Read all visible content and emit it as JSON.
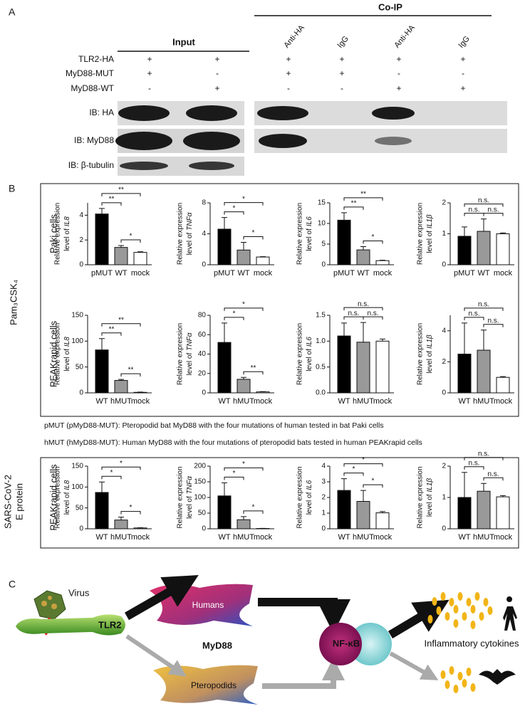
{
  "panel_a": {
    "label": "A",
    "input": "Input",
    "coip": "Co-IP",
    "columns": [
      "Anti-HA",
      "IgG",
      "Anti-HA",
      "IgG"
    ],
    "rows": [
      {
        "name": "TLR2-HA",
        "marks": [
          "+",
          "+",
          "+",
          "+",
          "+",
          "+"
        ]
      },
      {
        "name": "MyD88-MUT",
        "marks": [
          "+",
          "-",
          "+",
          "+",
          "-",
          "-"
        ]
      },
      {
        "name": "MyD88-WT",
        "marks": [
          "-",
          "+",
          "-",
          "-",
          "+",
          "+"
        ]
      }
    ],
    "blots": [
      "IB: HA",
      "IB: MyD88",
      "IB: β-tubulin"
    ]
  },
  "panel_b": {
    "label": "B",
    "rows": [
      "Paki cells",
      "PEAKrapid cells",
      "PEAKrapid cells"
    ],
    "treatments": [
      {
        "lines": [
          "Pam₃CSK₄"
        ]
      },
      {
        "lines": [
          "SARS-CoV-2",
          "E protein"
        ]
      }
    ],
    "notes": [
      "pMUT (pMyD88-MUT): Pteropodid bat MyD88 with the four mutations of human tested in bat Paki cells",
      "hMUT (hMyD88-MUT): Human MyD88 with the four mutations of pteropodid bats tested in human PEAKrapid cells"
    ]
  },
  "chart_data": [
    {
      "type": "bar",
      "ylabel": "Relative expression",
      "ylabel2": "level of",
      "gene": "IL8",
      "categories": [
        "pMUT",
        "WT",
        "mock"
      ],
      "values": [
        4.1,
        1.4,
        1.0
      ],
      "errors": [
        0.45,
        0.15,
        0.05
      ],
      "colors": [
        "#000000",
        "#999999",
        "#ffffff"
      ],
      "ylim": [
        0,
        5
      ],
      "yticks": [
        0,
        2,
        4
      ],
      "significance": [
        "**",
        "*",
        "**"
      ]
    },
    {
      "type": "bar",
      "ylabel": "Relative expression",
      "ylabel2": "level of",
      "gene": "TNFα",
      "categories": [
        "pMUT",
        "WT",
        "mock"
      ],
      "values": [
        4.6,
        1.9,
        1.0
      ],
      "errors": [
        1.5,
        1.0,
        0.05
      ],
      "colors": [
        "#000000",
        "#999999",
        "#ffffff"
      ],
      "ylim": [
        0,
        8
      ],
      "yticks": [
        0,
        4,
        8
      ],
      "significance": [
        "*",
        "*",
        "*"
      ]
    },
    {
      "type": "bar",
      "ylabel": "Relative expression",
      "ylabel2": "level of",
      "gene": "IL6",
      "categories": [
        "pMUT",
        "WT",
        "mock"
      ],
      "values": [
        10.8,
        3.6,
        1.0
      ],
      "errors": [
        1.8,
        0.8,
        0.1
      ],
      "colors": [
        "#000000",
        "#999999",
        "#ffffff"
      ],
      "ylim": [
        0,
        15
      ],
      "yticks": [
        0,
        5,
        10,
        15
      ],
      "significance": [
        "**",
        "*",
        "**"
      ]
    },
    {
      "type": "bar",
      "ylabel": "Relative expression",
      "ylabel2": "level of",
      "gene": "IL1β",
      "categories": [
        "pMUT",
        "WT",
        "mock"
      ],
      "values": [
        0.92,
        1.08,
        1.0
      ],
      "errors": [
        0.3,
        0.4,
        0.03
      ],
      "colors": [
        "#000000",
        "#999999",
        "#ffffff"
      ],
      "ylim": [
        0,
        2
      ],
      "yticks": [
        0,
        1,
        2
      ],
      "significance": [
        "n.s.",
        "n.s.",
        "n.s."
      ]
    },
    {
      "type": "bar",
      "ylabel": "Relative expression",
      "ylabel2": "level of",
      "gene": "IL8",
      "categories": [
        "WT",
        "hMUT",
        "mock"
      ],
      "values": [
        83,
        24,
        1
      ],
      "errors": [
        22,
        2,
        0.5
      ],
      "colors": [
        "#000000",
        "#999999",
        "#ffffff"
      ],
      "ylim": [
        0,
        150
      ],
      "yticks": [
        0,
        50,
        100,
        150
      ],
      "significance": [
        "**",
        "**",
        "**"
      ]
    },
    {
      "type": "bar",
      "ylabel": "Relative expression",
      "ylabel2": "level of",
      "gene": "TNFα",
      "categories": [
        "WT",
        "hMUT",
        "mock"
      ],
      "values": [
        52,
        14,
        1
      ],
      "errors": [
        20,
        2,
        0.3
      ],
      "colors": [
        "#000000",
        "#999999",
        "#ffffff"
      ],
      "ylim": [
        0,
        80
      ],
      "yticks": [
        0,
        20,
        40,
        60,
        80
      ],
      "significance": [
        "*",
        "**",
        "*"
      ]
    },
    {
      "type": "bar",
      "ylabel": "Relative expression",
      "ylabel2": "level of",
      "gene": "IL6",
      "categories": [
        "WT",
        "hMUT",
        "mock"
      ],
      "values": [
        1.1,
        0.98,
        1.0
      ],
      "errors": [
        0.25,
        0.38,
        0.04
      ],
      "colors": [
        "#000000",
        "#999999",
        "#ffffff"
      ],
      "ylim": [
        0,
        1.5
      ],
      "yticks": [
        {
          "value": 0,
          "label": "0.0"
        },
        {
          "value": 0.5,
          "label": "0.5"
        },
        {
          "value": 1,
          "label": "1.0"
        },
        {
          "value": 1.5,
          "label": "1.5"
        }
      ],
      "significance": [
        "n.s.",
        "n.s.",
        "n.s."
      ]
    },
    {
      "type": "bar",
      "ylabel": "Relative expression",
      "ylabel2": "level of",
      "gene": "IL1β",
      "categories": [
        "WT",
        "hMUT",
        "mock"
      ],
      "values": [
        2.5,
        2.75,
        1.0
      ],
      "errors": [
        2.0,
        1.3,
        0.05
      ],
      "colors": [
        "#000000",
        "#999999",
        "#ffffff"
      ],
      "ylim": [
        0,
        5
      ],
      "yticks": [
        0,
        2,
        4
      ],
      "significance": [
        "n.s.",
        "n.s.",
        "n.s."
      ]
    },
    {
      "type": "bar",
      "ylabel": "Relative expression",
      "ylabel2": "level of",
      "gene": "IL8",
      "categories": [
        "WT",
        "hMUT",
        "mock"
      ],
      "values": [
        87,
        21,
        2
      ],
      "errors": [
        25,
        7,
        0.5
      ],
      "colors": [
        "#000000",
        "#999999",
        "#ffffff"
      ],
      "ylim": [
        0,
        150
      ],
      "yticks": [
        0,
        50,
        100,
        150
      ],
      "significance": [
        "*",
        "*",
        "*"
      ]
    },
    {
      "type": "bar",
      "ylabel": "Relative expression",
      "ylabel2": "level of",
      "gene": "TNFα",
      "categories": [
        "WT",
        "hMUT",
        "mock"
      ],
      "values": [
        105,
        29,
        1
      ],
      "errors": [
        42,
        10,
        0.5
      ],
      "colors": [
        "#000000",
        "#999999",
        "#ffffff"
      ],
      "ylim": [
        0,
        200
      ],
      "yticks": [
        0,
        50,
        100,
        150,
        200
      ],
      "significance": [
        "*",
        "*",
        "*"
      ]
    },
    {
      "type": "bar",
      "ylabel": "Relative expression",
      "ylabel2": "level of",
      "gene": "IL6",
      "categories": [
        "WT",
        "hMUT",
        "mock"
      ],
      "values": [
        2.45,
        1.75,
        1.02
      ],
      "errors": [
        0.75,
        0.7,
        0.08
      ],
      "colors": [
        "#000000",
        "#999999",
        "#ffffff"
      ],
      "ylim": [
        0,
        4
      ],
      "yticks": [
        0,
        1,
        2,
        3,
        4
      ],
      "significance": [
        "*",
        "*",
        "*"
      ]
    },
    {
      "type": "bar",
      "ylabel": "Relative expression",
      "ylabel2": "level of",
      "gene": "IL1β",
      "categories": [
        "WT",
        "hMUT",
        "mock"
      ],
      "values": [
        1.0,
        1.2,
        1.02
      ],
      "errors": [
        0.8,
        0.25,
        0.04
      ],
      "colors": [
        "#000000",
        "#999999",
        "#ffffff"
      ],
      "ylim": [
        0,
        2
      ],
      "yticks": [
        0,
        1,
        2
      ],
      "significance": [
        "n.s.",
        "n.s.",
        "n.s."
      ]
    }
  ],
  "panel_c": {
    "label": "C",
    "virus": "Virus",
    "receptor": "TLR2",
    "humans": "Humans",
    "adaptor": "MyD88",
    "bats": "Pteropodids",
    "factor": "NF-κB",
    "output": "Inflammatory cytokines"
  }
}
